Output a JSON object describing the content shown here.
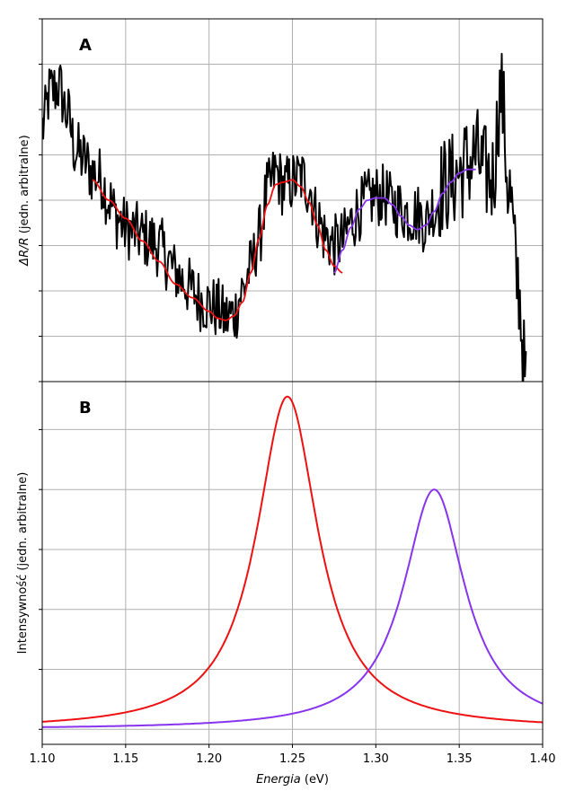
{
  "chart_data": [
    {
      "panel_label": "A",
      "type": "line",
      "ylabel_italic": "ΔR/R",
      "ylabel_rest": " (jedn. arbitralne)",
      "xlim": [
        1.1,
        1.4
      ],
      "ylim": [
        -4.0,
        4.0
      ],
      "ytick_labels_shown": false,
      "grid": true,
      "series": [
        {
          "color": "#000000",
          "style": "noisy-experimental",
          "x": [
            1.1,
            1.105,
            1.11,
            1.115,
            1.12,
            1.125,
            1.13,
            1.135,
            1.14,
            1.145,
            1.15,
            1.155,
            1.16,
            1.165,
            1.17,
            1.175,
            1.18,
            1.185,
            1.19,
            1.195,
            1.2,
            1.205,
            1.21,
            1.215,
            1.22,
            1.225,
            1.23,
            1.235,
            1.24,
            1.245,
            1.25,
            1.255,
            1.26,
            1.265,
            1.27,
            1.275,
            1.28,
            1.285,
            1.29,
            1.295,
            1.3,
            1.305,
            1.31,
            1.315,
            1.32,
            1.325,
            1.33,
            1.335,
            1.34,
            1.345,
            1.35,
            1.355,
            1.36,
            1.365,
            1.37,
            1.375,
            1.38,
            1.385,
            1.39
          ],
          "y": [
            1.6,
            2.4,
            2.5,
            1.9,
            1.1,
            0.9,
            0.6,
            0.5,
            0.0,
            -0.4,
            -0.6,
            -0.7,
            -0.8,
            -0.9,
            -1.0,
            -1.3,
            -1.6,
            -1.8,
            -2.0,
            -2.2,
            -2.3,
            -2.4,
            -2.6,
            -2.5,
            -2.0,
            -1.5,
            -0.8,
            0.2,
            0.6,
            0.3,
            0.4,
            0.5,
            0.3,
            -0.4,
            -0.8,
            -1.0,
            -0.9,
            -0.5,
            -0.2,
            0.0,
            0.1,
            0.1,
            -0.1,
            -0.2,
            -0.3,
            -0.3,
            -0.5,
            -0.1,
            0.3,
            0.4,
            0.6,
            0.8,
            1.0,
            0.6,
            0.5,
            2.4,
            0.2,
            -1.8,
            -4.0
          ],
          "noise_amplitude": 0.7
        },
        {
          "color": "#ee1111",
          "x": [
            1.13,
            1.14,
            1.15,
            1.16,
            1.17,
            1.18,
            1.19,
            1.2,
            1.205,
            1.21,
            1.215,
            1.22,
            1.225,
            1.23,
            1.235,
            1.24,
            1.245,
            1.25,
            1.255,
            1.26,
            1.265,
            1.27,
            1.275,
            1.28
          ],
          "y": [
            0.45,
            0.0,
            -0.4,
            -0.9,
            -1.35,
            -1.85,
            -2.15,
            -2.45,
            -2.6,
            -2.65,
            -2.55,
            -2.25,
            -1.6,
            -0.85,
            -0.1,
            0.35,
            0.4,
            0.45,
            0.3,
            -0.05,
            -0.55,
            -1.1,
            -1.45,
            -1.6
          ],
          "smooth": true
        },
        {
          "color": "#8833ee",
          "x": [
            1.275,
            1.28,
            1.285,
            1.29,
            1.295,
            1.3,
            1.305,
            1.31,
            1.315,
            1.32,
            1.325,
            1.33,
            1.335,
            1.34,
            1.345,
            1.35,
            1.355,
            1.36
          ],
          "y": [
            -1.6,
            -1.1,
            -0.6,
            -0.2,
            0.0,
            0.05,
            0.05,
            -0.1,
            -0.35,
            -0.55,
            -0.65,
            -0.55,
            -0.25,
            0.15,
            0.4,
            0.6,
            0.68,
            0.68
          ],
          "smooth": true
        }
      ]
    },
    {
      "panel_label": "B",
      "type": "line",
      "xlabel_italic": "Energia",
      "xlabel_rest": " (eV)",
      "ylabel": "Intensywność (jedn. arbitralne)",
      "xlim": [
        1.1,
        1.4
      ],
      "ylim": [
        -0.25,
        5.8
      ],
      "xticks": [
        1.1,
        1.15,
        1.2,
        1.25,
        1.3,
        1.35,
        1.4
      ],
      "xtick_labels": [
        "1.10",
        "1.15",
        "1.20",
        "1.25",
        "1.30",
        "1.35",
        "1.40"
      ],
      "ytick_labels_shown": false,
      "grid": true,
      "series": [
        {
          "color": "#ee1111",
          "type": "lorentzian",
          "center": 1.247,
          "fwhm": 0.045,
          "amplitude": 5.55,
          "baseline": 0.0
        },
        {
          "color": "#8833ee",
          "type": "lorentzian",
          "center": 1.335,
          "fwhm": 0.045,
          "amplitude": 4.0,
          "baseline": 0.0
        }
      ]
    }
  ]
}
